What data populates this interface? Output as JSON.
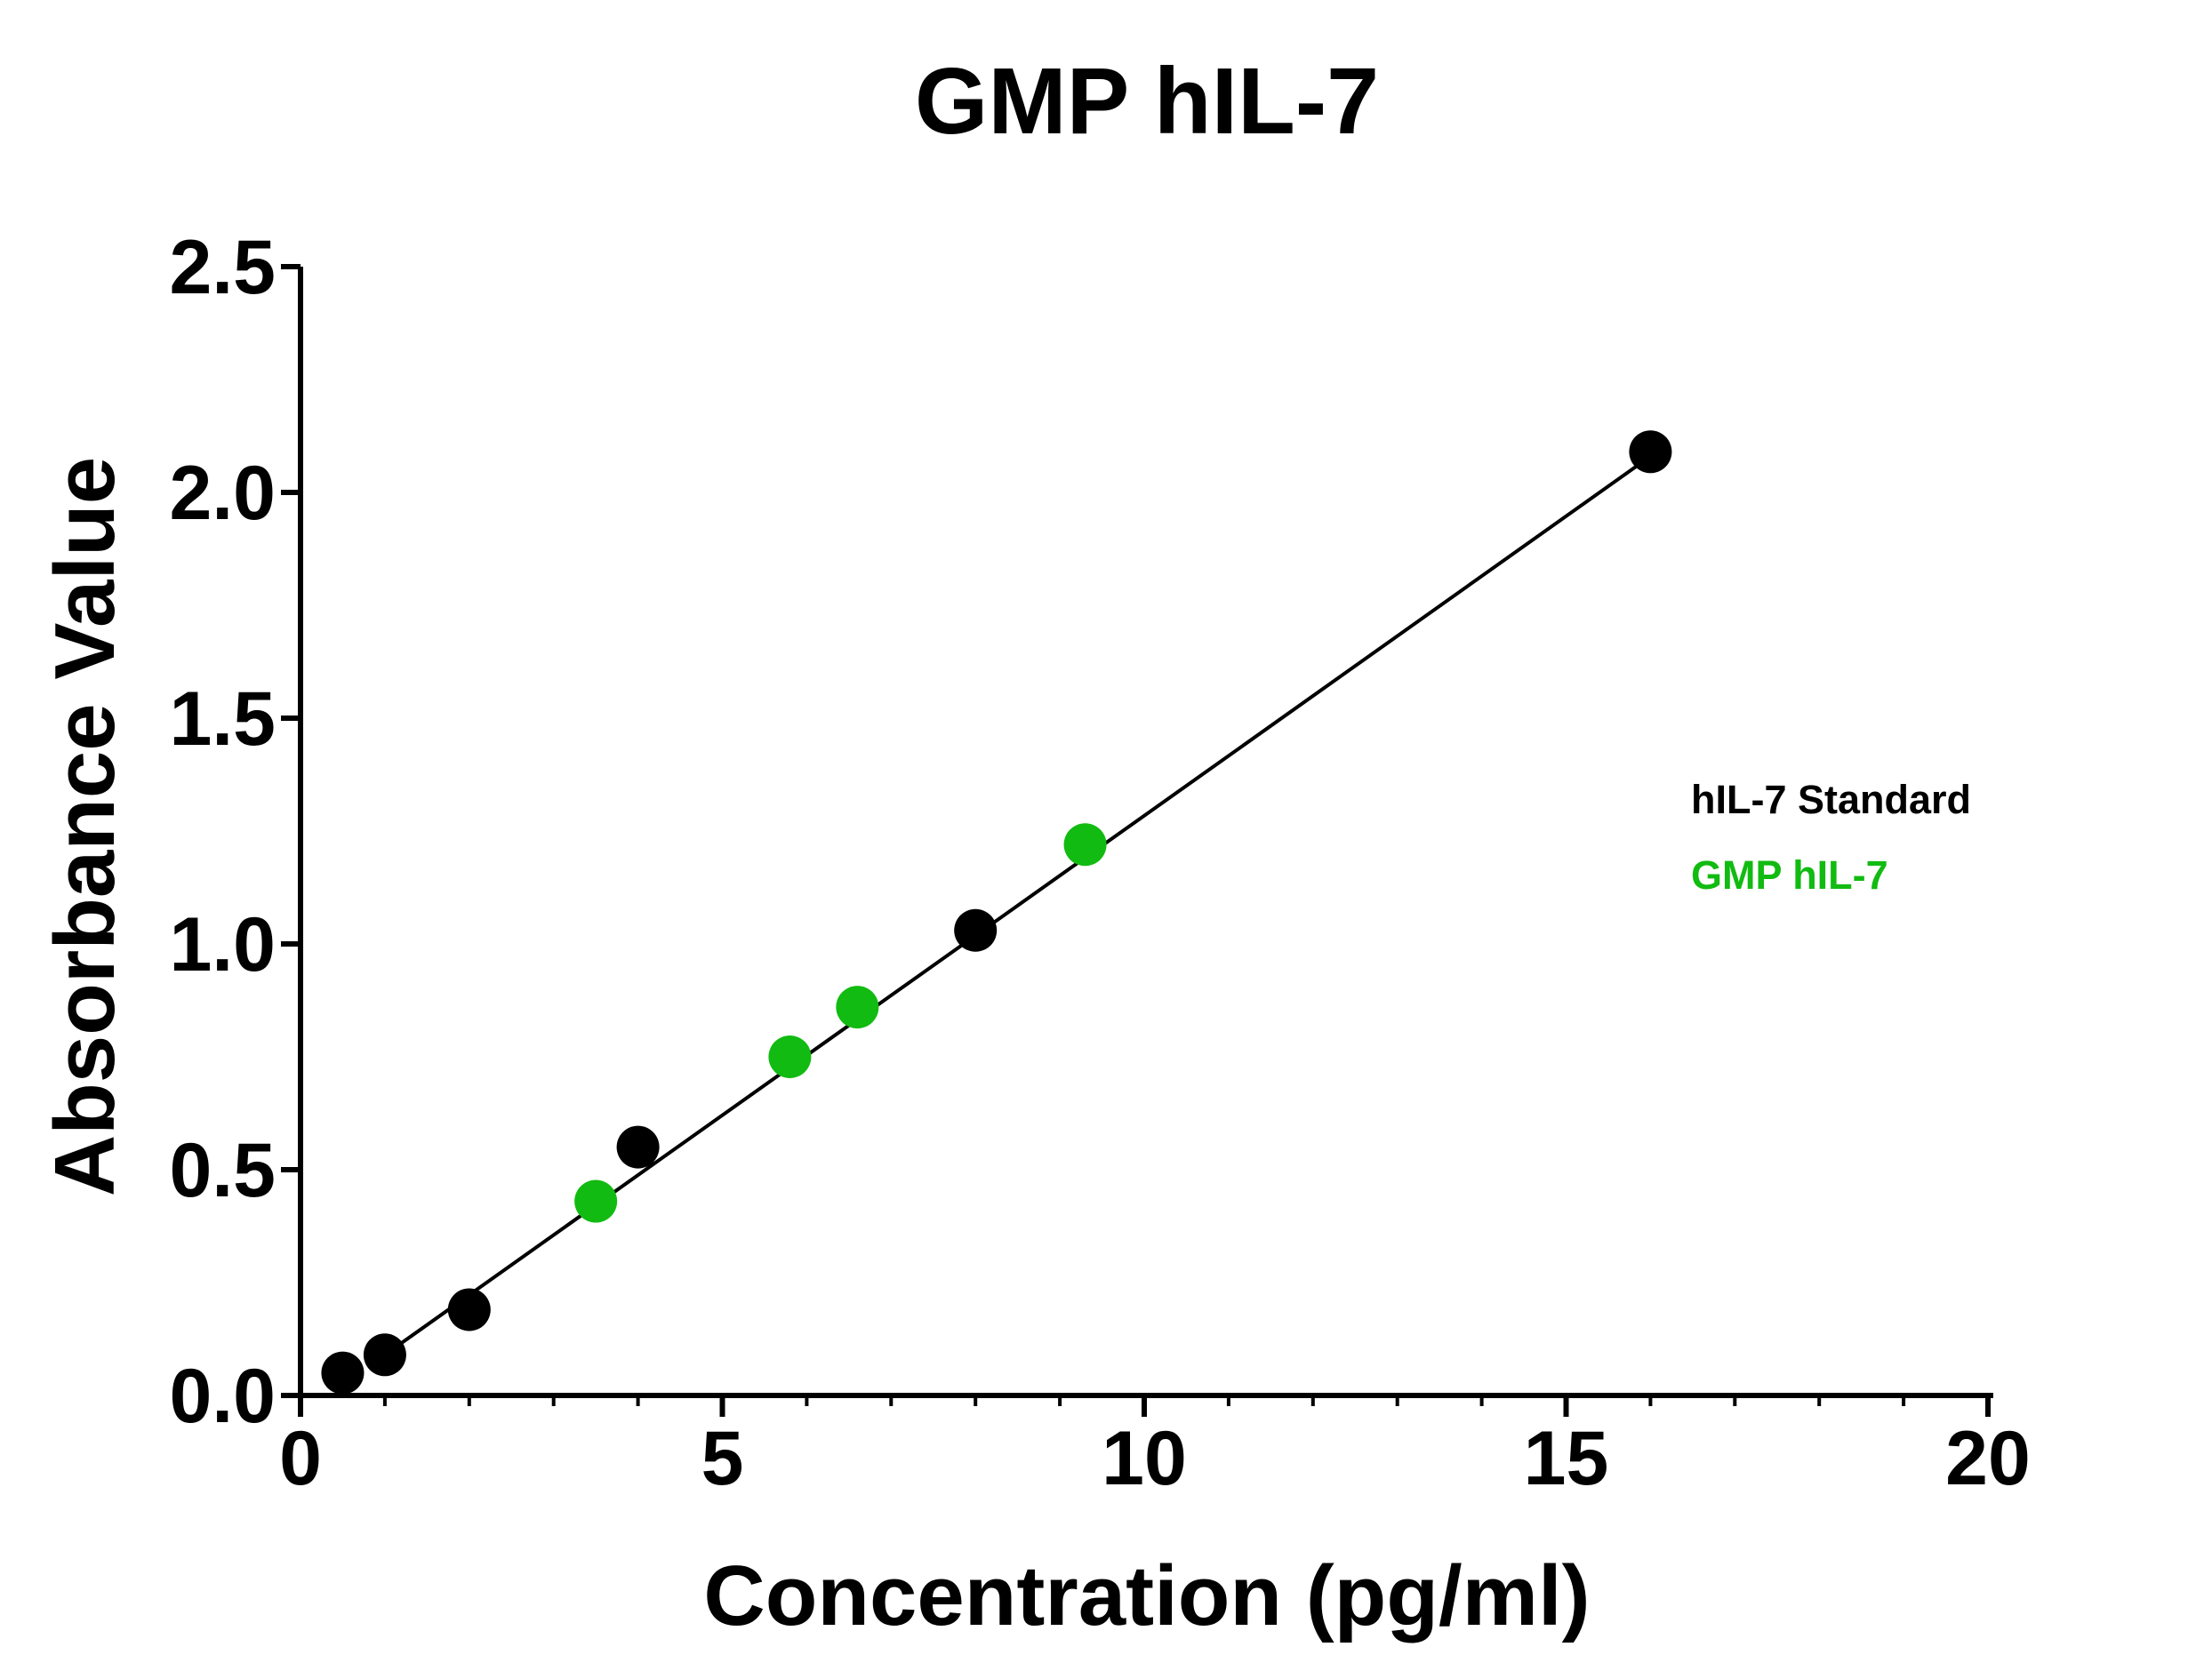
{
  "chart_data": {
    "type": "scatter",
    "title": "GMP hIL-7",
    "xlabel": "Concentration (pg/ml)",
    "ylabel": "Absorbance Value",
    "xlim": [
      0,
      20
    ],
    "ylim": [
      0,
      2.5
    ],
    "x_ticks": [
      "0",
      "5",
      "10",
      "15",
      "20"
    ],
    "y_ticks": [
      "0.0",
      "0.5",
      "1.0",
      "1.5",
      "2.0",
      "2.5"
    ],
    "x_minor_step": 1,
    "grid": false,
    "legend_position": "right",
    "fit_line": {
      "x": [
        1,
        16
      ],
      "y": [
        0.09,
        2.08
      ],
      "color": "#000000"
    },
    "series": [
      {
        "name": "hIL-7 Standard",
        "color": "#000000",
        "points": [
          [
            0.5,
            0.05
          ],
          [
            1,
            0.09
          ],
          [
            2,
            0.19
          ],
          [
            4,
            0.55
          ],
          [
            8,
            1.03
          ],
          [
            16,
            2.09
          ]
        ]
      },
      {
        "name": "GMP hIL-7",
        "color": "#11bb11",
        "points": [
          [
            3.5,
            0.43
          ],
          [
            5.8,
            0.75
          ],
          [
            6.6,
            0.86
          ],
          [
            9.3,
            1.22
          ]
        ]
      }
    ]
  }
}
